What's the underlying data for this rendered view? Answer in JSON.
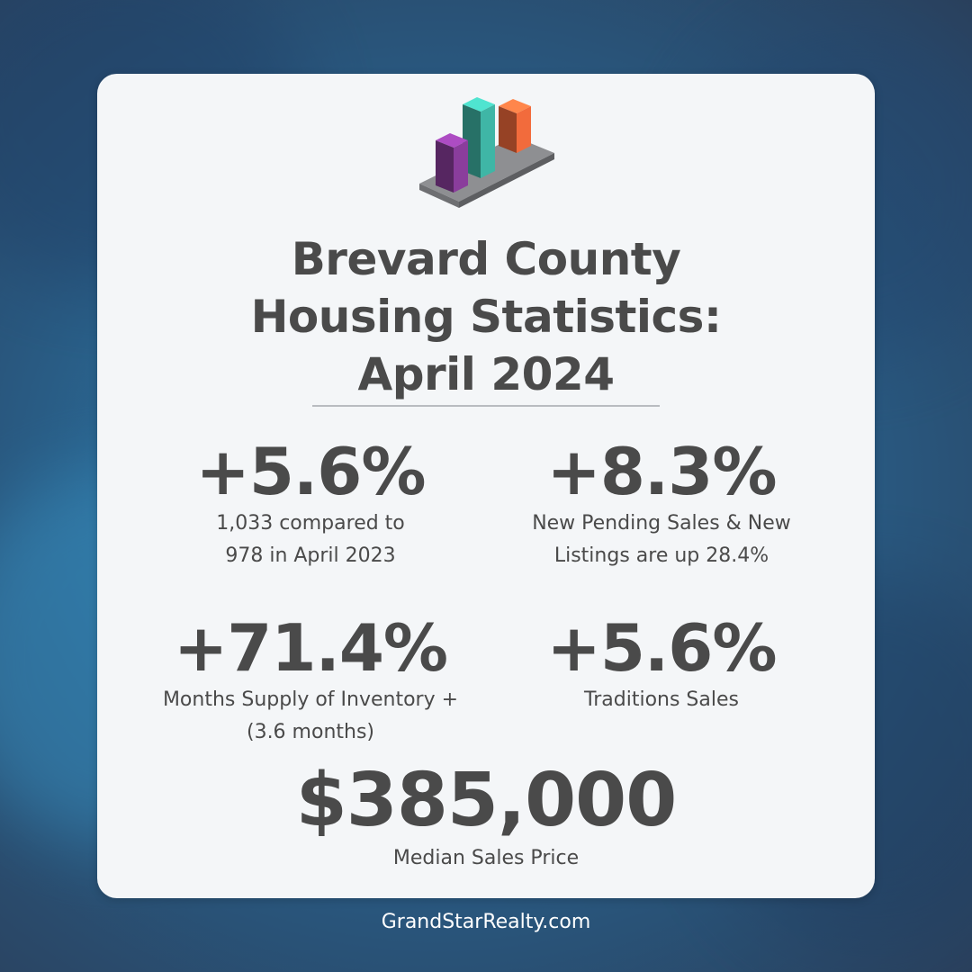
{
  "colors": {
    "background": "#2a6f9d",
    "card": "#f4f6f8",
    "text": "#4a4a4a",
    "divider": "#b9bcc0",
    "bar_purple": "#8a3d9c",
    "bar_teal": "#3fb6a6",
    "bar_orange": "#f26b3c",
    "footer_text": "#ffffff"
  },
  "header": {
    "icon": "bar-chart-3d-icon",
    "title_lines": [
      "Brevard County",
      "Housing Statistics:",
      "April 2024"
    ]
  },
  "stats": [
    {
      "value": "+5.6%",
      "label_lines": [
        "1,033 compared to",
        "978 in April 2023"
      ]
    },
    {
      "value": "+8.3%",
      "label_lines": [
        "New Pending Sales & New",
        "Listings are up 28.4%"
      ]
    },
    {
      "value": "+71.4%",
      "label_lines": [
        "Months Supply of Inventory +",
        "(3.6 months)"
      ]
    },
    {
      "value": "+5.6%",
      "label_lines": [
        "Traditions Sales"
      ]
    },
    {
      "value": "$385,000",
      "label_lines": [
        "Median Sales Price"
      ]
    }
  ],
  "footer": {
    "website": "GrandStarRealty.com"
  }
}
